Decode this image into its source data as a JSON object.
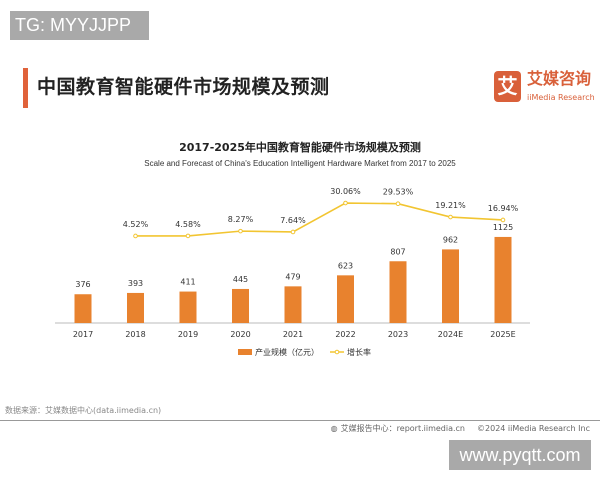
{
  "watermarks": {
    "top": "TG: MYYJJPP",
    "bottom": "www.pyqtt.com"
  },
  "header": {
    "title": "中国教育智能硬件市场规模及预测",
    "logo_glyph": "艾",
    "logo_cn": "艾媒咨询",
    "logo_en": "iiMedia Research"
  },
  "colors": {
    "bar": "#E8822E",
    "line": "#F2C531",
    "accent": "#E0623A"
  },
  "chart_data": {
    "type": "bar+line",
    "title": "2017-2025年中国教育智能硬件市场规模及预测",
    "subtitle": "Scale and Forecast of China's Education Intelligent Hardware Market from 2017 to 2025",
    "categories": [
      "2017",
      "2018",
      "2019",
      "2020",
      "2021",
      "2022",
      "2023",
      "2024E",
      "2025E"
    ],
    "series": [
      {
        "name": "产业规模（亿元）",
        "type": "bar",
        "values": [
          376,
          393,
          411,
          445,
          479,
          623,
          807,
          962,
          1125
        ],
        "labels": [
          "376",
          "393",
          "411",
          "445",
          "479",
          "623",
          "807",
          "962",
          "1125"
        ]
      },
      {
        "name": "增长率",
        "type": "line",
        "values": [
          null,
          4.52,
          4.58,
          8.27,
          7.64,
          30.06,
          29.53,
          19.21,
          16.94
        ],
        "labels": [
          "",
          "4.52%",
          "4.58%",
          "8.27%",
          "7.64%",
          "30.06%",
          "29.53%",
          "19.21%",
          "16.94%"
        ]
      }
    ],
    "grid": false,
    "legend": "bottom"
  },
  "footer": {
    "source": "数据来源：艾媒数据中心(data.iimedia.cn)",
    "report": "艾媒报告中心：report.iimedia.cn",
    "copyright": "©2024  iiMedia Research  Inc"
  }
}
